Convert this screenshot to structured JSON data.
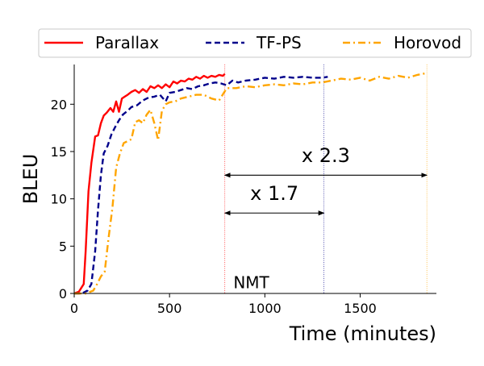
{
  "chart_data": {
    "type": "line",
    "title": "",
    "xlabel": "Time (minutes)",
    "ylabel": "BLEU",
    "xlim": [
      0,
      1900
    ],
    "ylim": [
      0,
      24.2
    ],
    "xticks": [
      0,
      500,
      1000,
      1500
    ],
    "yticks": [
      0,
      5,
      10,
      15,
      20
    ],
    "grid": false,
    "legend_placement": "top",
    "series": [
      {
        "name": "Parallax",
        "color": "#ff0000",
        "style": "solid",
        "x": [
          0,
          25,
          50,
          60,
          75,
          90,
          110,
          125,
          140,
          155,
          170,
          190,
          205,
          220,
          235,
          250,
          265,
          280,
          300,
          320,
          340,
          360,
          380,
          400,
          420,
          440,
          460,
          480,
          500,
          520,
          540,
          560,
          580,
          600,
          620,
          640,
          660,
          680,
          700,
          720,
          740,
          760,
          780,
          790
        ],
        "y": [
          0,
          0.2,
          1.0,
          4.5,
          10.8,
          13.8,
          16.6,
          16.7,
          18.0,
          18.8,
          19.1,
          19.6,
          19.2,
          20.3,
          19.2,
          20.6,
          20.8,
          21.0,
          21.3,
          21.5,
          21.2,
          21.6,
          21.3,
          21.9,
          21.7,
          22.0,
          21.7,
          22.1,
          21.8,
          22.4,
          22.2,
          22.5,
          22.4,
          22.7,
          22.6,
          22.9,
          22.7,
          23.0,
          22.8,
          23.0,
          22.9,
          23.1,
          23.0,
          23.2
        ]
      },
      {
        "name": "TF-PS",
        "color": "#00008b",
        "style": "dashed",
        "x": [
          0,
          40,
          70,
          90,
          110,
          125,
          140,
          155,
          175,
          195,
          215,
          235,
          255,
          280,
          300,
          330,
          360,
          390,
          420,
          450,
          480,
          500,
          530,
          560,
          590,
          620,
          650,
          680,
          710,
          740,
          770,
          800,
          830,
          860,
          900,
          950,
          1000,
          1050,
          1100,
          1150,
          1200,
          1250,
          1300,
          1330
        ],
        "y": [
          0,
          0,
          0.3,
          1.0,
          4.5,
          8.8,
          12.5,
          14.8,
          15.6,
          16.8,
          17.6,
          18.3,
          18.9,
          19.3,
          19.7,
          19.9,
          20.4,
          20.7,
          20.8,
          21.0,
          20.3,
          21.2,
          21.3,
          21.5,
          21.7,
          21.6,
          21.9,
          22.0,
          22.2,
          22.3,
          22.2,
          22.0,
          22.5,
          22.3,
          22.5,
          22.6,
          22.8,
          22.7,
          22.9,
          22.8,
          22.9,
          22.8,
          22.8,
          22.9
        ]
      },
      {
        "name": "Horovod",
        "color": "#ffa500",
        "style": "dashdot",
        "x": [
          0,
          60,
          100,
          120,
          140,
          160,
          180,
          200,
          220,
          240,
          260,
          280,
          300,
          320,
          340,
          360,
          380,
          400,
          420,
          440,
          460,
          480,
          500,
          530,
          560,
          600,
          640,
          680,
          720,
          760,
          800,
          850,
          900,
          950,
          1000,
          1050,
          1100,
          1150,
          1200,
          1250,
          1300,
          1350,
          1400,
          1450,
          1500,
          1550,
          1600,
          1650,
          1700,
          1750,
          1800,
          1850
        ],
        "y": [
          0,
          0,
          0.3,
          1.0,
          1.8,
          2.3,
          5.8,
          9.0,
          13.3,
          14.8,
          15.9,
          16.1,
          16.3,
          18.1,
          18.3,
          18.0,
          18.9,
          19.4,
          18.0,
          16.2,
          19.3,
          20.0,
          20.2,
          20.3,
          20.6,
          20.8,
          21.0,
          21.0,
          20.6,
          20.4,
          21.7,
          21.7,
          21.9,
          21.8,
          22.0,
          22.1,
          22.0,
          22.2,
          22.1,
          22.3,
          22.3,
          22.5,
          22.7,
          22.6,
          22.8,
          22.5,
          22.9,
          22.7,
          23.0,
          22.8,
          23.1,
          23.3
        ]
      }
    ],
    "vlines": [
      {
        "x": 790,
        "color": "#ff0000"
      },
      {
        "x": 1310,
        "color": "#00008b"
      },
      {
        "x": 1850,
        "color": "#ffa500"
      }
    ],
    "annotations": [
      {
        "text": "x 2.3",
        "x1": 790,
        "x2": 1850,
        "y_arrow": 12.5,
        "y_text": 13.9
      },
      {
        "text": "x 1.7",
        "x1": 790,
        "x2": 1310,
        "y_arrow": 8.5,
        "y_text": 9.9
      },
      {
        "text": "NMT",
        "x": 835,
        "y": 1.0
      }
    ]
  }
}
